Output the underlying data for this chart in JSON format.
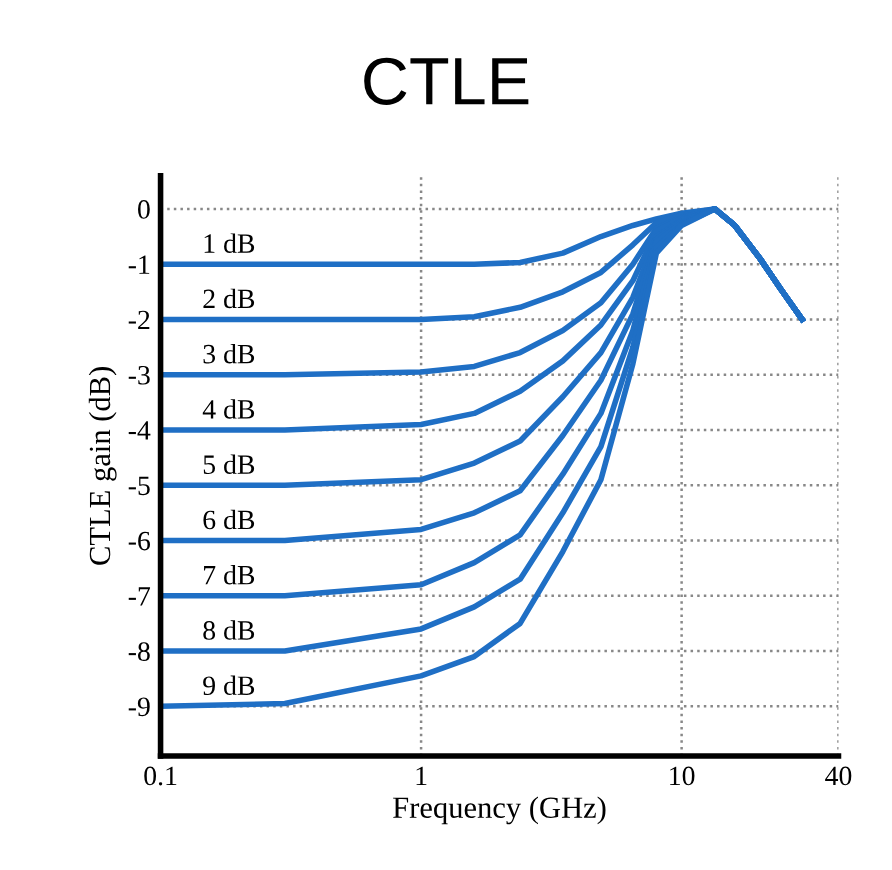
{
  "chart_data": {
    "type": "line",
    "title": "CTLE",
    "xlabel": "Frequency (GHz)",
    "ylabel": "CTLE gain (dB)",
    "x": [
      0.1,
      0.3,
      1,
      1.6,
      2.4,
      3.5,
      4.9,
      6.5,
      8,
      10,
      13.4,
      16,
      20,
      24,
      29
    ],
    "series": [
      {
        "name": "1 dB",
        "color": "#1f6fc5",
        "values": [
          -1,
          -1,
          -1,
          -1,
          -0.97,
          -0.8,
          -0.5,
          -0.3,
          -0.18,
          -0.08,
          0,
          -0.3,
          -0.9,
          -1.45,
          -2.0
        ]
      },
      {
        "name": "2 dB",
        "color": "#1f6fc5",
        "values": [
          -2,
          -2,
          -2,
          -1.95,
          -1.78,
          -1.5,
          -1.15,
          -0.65,
          -0.25,
          -0.12,
          0,
          -0.3,
          -0.9,
          -1.45,
          -2.0
        ]
      },
      {
        "name": "3 dB",
        "color": "#1f6fc5",
        "values": [
          -3,
          -3,
          -2.95,
          -2.85,
          -2.6,
          -2.2,
          -1.7,
          -1.0,
          -0.35,
          -0.15,
          0,
          -0.3,
          -0.9,
          -1.45,
          -2.0
        ]
      },
      {
        "name": "4 dB",
        "color": "#1f6fc5",
        "values": [
          -4,
          -4,
          -3.9,
          -3.7,
          -3.3,
          -2.75,
          -2.1,
          -1.3,
          -0.4,
          -0.17,
          0,
          -0.3,
          -0.9,
          -1.45,
          -2.0
        ]
      },
      {
        "name": "5 dB",
        "color": "#1f6fc5",
        "values": [
          -5,
          -5,
          -4.9,
          -4.6,
          -4.2,
          -3.4,
          -2.6,
          -1.6,
          -0.5,
          -0.2,
          0,
          -0.3,
          -0.9,
          -1.45,
          -2.0
        ]
      },
      {
        "name": "6 dB",
        "color": "#1f6fc5",
        "values": [
          -6,
          -6,
          -5.8,
          -5.5,
          -5.1,
          -4.1,
          -3.1,
          -1.9,
          -0.55,
          -0.22,
          0,
          -0.3,
          -0.9,
          -1.45,
          -2.0
        ]
      },
      {
        "name": "7 dB",
        "color": "#1f6fc5",
        "values": [
          -7,
          -7,
          -6.8,
          -6.4,
          -5.9,
          -4.8,
          -3.7,
          -2.2,
          -0.6,
          -0.25,
          0,
          -0.3,
          -0.9,
          -1.45,
          -2.0
        ]
      },
      {
        "name": "8 dB",
        "color": "#1f6fc5",
        "values": [
          -8,
          -8,
          -7.6,
          -7.2,
          -6.7,
          -5.5,
          -4.3,
          -2.5,
          -0.7,
          -0.28,
          0,
          -0.3,
          -0.9,
          -1.45,
          -2.0
        ]
      },
      {
        "name": "9 dB",
        "color": "#1f6fc5",
        "values": [
          -9,
          -8.95,
          -8.45,
          -8.1,
          -7.5,
          -6.2,
          -4.9,
          -2.8,
          -0.8,
          -0.3,
          0,
          -0.3,
          -0.9,
          -1.45,
          -2.0
        ]
      }
    ],
    "log": "x",
    "xlim": [
      0.1,
      40
    ],
    "xticks": [
      0.1,
      1,
      10,
      40
    ],
    "ylim": [
      -9.9,
      0.6
    ],
    "yticks": [
      0,
      -1,
      -2,
      -3,
      -4,
      -5,
      -6,
      -7,
      -8,
      -9
    ],
    "grid": true,
    "marker": "none",
    "line_style": "solid",
    "legend": false
  }
}
